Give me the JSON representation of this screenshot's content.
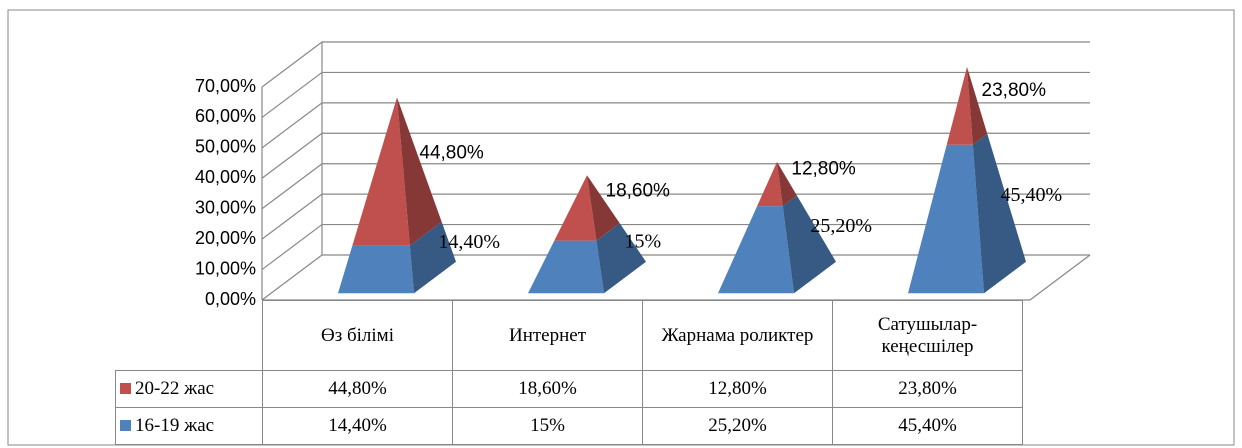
{
  "chart_data": {
    "type": "pyramid3d",
    "categories": [
      "Өз білімі",
      "Интернет",
      "Жарнама роликтер",
      "Сатушылар-кеңесшілер"
    ],
    "series": [
      {
        "name": "20-22 жас",
        "color": "#c0504d",
        "values": [
          44.8,
          18.6,
          12.8,
          23.8
        ],
        "value_labels": [
          "44,80%",
          "18,60%",
          "12,80%",
          "23,80%"
        ]
      },
      {
        "name": "16-19 жас",
        "color": "#4f81bd",
        "values": [
          14.4,
          15,
          25.2,
          45.4
        ],
        "value_labels": [
          "14,40%",
          "15%",
          "25,20%",
          "45,40%"
        ]
      }
    ],
    "ylim": [
      0,
      70
    ],
    "yticks": [
      {
        "value": 0,
        "label": "0,00%"
      },
      {
        "value": 10,
        "label": "10,00%"
      },
      {
        "value": 20,
        "label": "20,00%"
      },
      {
        "value": 30,
        "label": "30,00%"
      },
      {
        "value": 40,
        "label": "40,00%"
      },
      {
        "value": 50,
        "label": "50,00%"
      },
      {
        "value": 60,
        "label": "60,00%"
      },
      {
        "value": 70,
        "label": "70,00%"
      }
    ],
    "grid": true,
    "stacked": true
  }
}
